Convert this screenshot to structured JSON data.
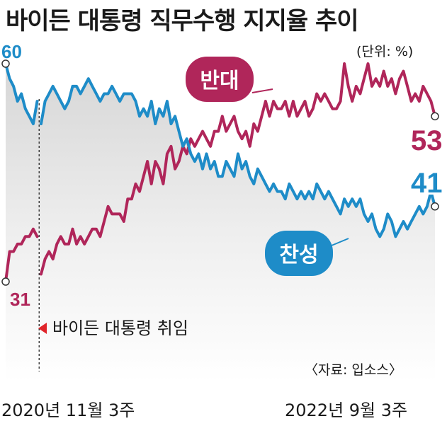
{
  "title": "바이든 대통령 직무수행 지지율 추이",
  "unit": "(단위: %)",
  "source": "〈자료: 입소스〉",
  "x_axis": {
    "start": "2020년 11월 3주",
    "end": "2022년 9월 3주"
  },
  "annotation": "바이든 대통령 취임",
  "colors": {
    "approve": "#1e8cc8",
    "disapprove": "#b0265a",
    "marker": "#e0242a"
  },
  "chart_data": {
    "type": "line",
    "title": "바이든 대통령 직무수행 지지율 추이",
    "ylim": [
      22,
      68
    ],
    "x_start": "2020년 11월 3주",
    "x_end": "2022년 9월 3주",
    "annotations": [
      {
        "text": "바이든 대통령 취임",
        "week_index": 9
      }
    ],
    "series": [
      {
        "name": "찬성",
        "label": "찬성",
        "values": [
          60,
          58,
          57,
          55,
          56,
          54,
          53,
          52,
          55,
          52,
          55,
          56,
          57,
          56,
          55,
          54,
          55,
          57,
          57,
          56,
          57,
          58,
          57,
          56,
          55,
          56,
          56,
          57,
          56,
          55,
          56,
          56,
          56,
          55,
          53,
          54,
          53,
          55,
          52,
          54,
          53,
          55,
          52,
          53,
          51,
          49,
          50,
          48,
          47,
          48,
          46,
          48,
          46,
          47,
          45,
          45,
          47,
          46,
          45,
          48,
          46,
          47,
          45,
          44,
          46,
          45,
          44,
          43,
          44,
          43,
          43,
          42,
          44,
          43,
          42,
          43,
          42,
          43,
          42,
          44,
          43,
          42,
          43,
          42,
          41,
          40,
          42,
          41,
          42,
          41,
          42,
          40,
          39,
          40,
          38,
          37,
          38,
          40,
          39,
          37,
          38,
          39,
          38,
          39,
          40,
          41,
          40,
          41,
          43,
          41
        ],
        "end_label": "41"
      },
      {
        "name": "반대",
        "label": "반대",
        "values": [
          31,
          35,
          35,
          36,
          36,
          37,
          37,
          38,
          37,
          32,
          34,
          35,
          34,
          36,
          37,
          36,
          36,
          38,
          36,
          37,
          36,
          37,
          38,
          38,
          37,
          39,
          41,
          40,
          40,
          40,
          39,
          42,
          42,
          44,
          43,
          45,
          47,
          44,
          47,
          46,
          44,
          48,
          49,
          46,
          47,
          49,
          48,
          50,
          49,
          50,
          51,
          50,
          49,
          51,
          51,
          53,
          51,
          52,
          53,
          51,
          50,
          51,
          49,
          52,
          51,
          53,
          55,
          53,
          55,
          54,
          54,
          55,
          53,
          55,
          53,
          54,
          55,
          53,
          54,
          56,
          55,
          56,
          55,
          54,
          54,
          55,
          60,
          57,
          55,
          57,
          56,
          58,
          60,
          57,
          58,
          57,
          59,
          57,
          58,
          56,
          58,
          59,
          57,
          55,
          56,
          55,
          57,
          56,
          55,
          53
        ],
        "end_label": "53"
      }
    ],
    "start_labels": {
      "찬성": "60",
      "반대": "31"
    }
  }
}
